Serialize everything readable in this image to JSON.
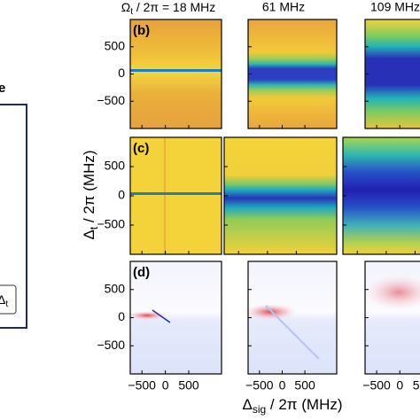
{
  "columns": [
    {
      "symbol": "Ω",
      "subscript": "t",
      "text": " / 2π = 18 MHz"
    },
    {
      "text": "61 MHz"
    },
    {
      "text": "109 MHz"
    }
  ],
  "panel_labels": [
    "(b)",
    "(c)",
    "(d)"
  ],
  "ylim": [
    -1000,
    1000
  ],
  "yticks": [
    500,
    0,
    {
      "value": -500,
      "label": "−500"
    }
  ],
  "xlim": [
    -750,
    1200
  ],
  "xticks": [
    {
      "value": -500,
      "label": "−500"
    },
    0,
    500
  ],
  "y_label": {
    "symbol": "Δ",
    "subscript": "t",
    "text": " / 2π (MHz)"
  },
  "x_label": {
    "symbol": "Δ",
    "subscript": "sig",
    "text": " / 2π (MHz)"
  },
  "diagram": {
    "heading": "e",
    "box": {
      "symbol": "Δ",
      "subscript": "t"
    }
  }
}
